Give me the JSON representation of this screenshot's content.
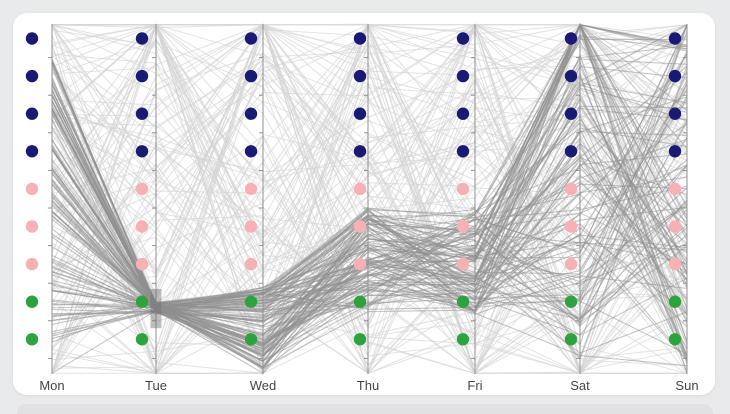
{
  "page": {
    "background": "#e9eaeb",
    "card_color": "#ffffff",
    "lower_panel_color": "#e1e1e3"
  },
  "chart_data": {
    "type": "parallel-coordinates",
    "axes": [
      "Mon",
      "Tue",
      "Wed",
      "Thu",
      "Fri",
      "Sat",
      "Sun"
    ],
    "axis_color": "#909090",
    "label_color": "#454545",
    "tick_count": 9,
    "dot_rows": 9,
    "category_dot_colors": [
      "#1a1a75",
      "#1a1a75",
      "#1a1a75",
      "#1a1a75",
      "#f7b0b4",
      "#f7b0b4",
      "#f7b0b4",
      "#2da33e",
      "#2da33e"
    ],
    "line_colors": {
      "selected": "#8f8f8f",
      "unselected": "#d4d4d4"
    },
    "brush": {
      "axis": "Tue",
      "axis_index": 1,
      "color": "#6e6e6e",
      "opacity": 0.45,
      "selected_fraction_range": [
        0.757,
        0.869
      ]
    },
    "series_spec": {
      "seed": 1337,
      "selected": {
        "count": 115,
        "ranges": [
          [
            0.09,
            0.92
          ],
          [
            0.795,
            0.826
          ],
          [
            0.75,
            0.99
          ],
          [
            0.525,
            0.823
          ],
          [
            0.53,
            0.83
          ],
          [
            0.0,
            0.96
          ],
          [
            0.01,
            0.985
          ]
        ],
        "snap_top": [
          0,
          0,
          0,
          0,
          0,
          0.1,
          0.05
        ],
        "snap_bottom": [
          0.02,
          0,
          0.02,
          0,
          0,
          0,
          0.02
        ],
        "opacity": 0.5,
        "width": 1.1
      },
      "unselected": {
        "count": 135,
        "snap_top": 0.12,
        "snap_bottom": 0.08,
        "opacity": 0.65,
        "width": 1
      }
    }
  }
}
